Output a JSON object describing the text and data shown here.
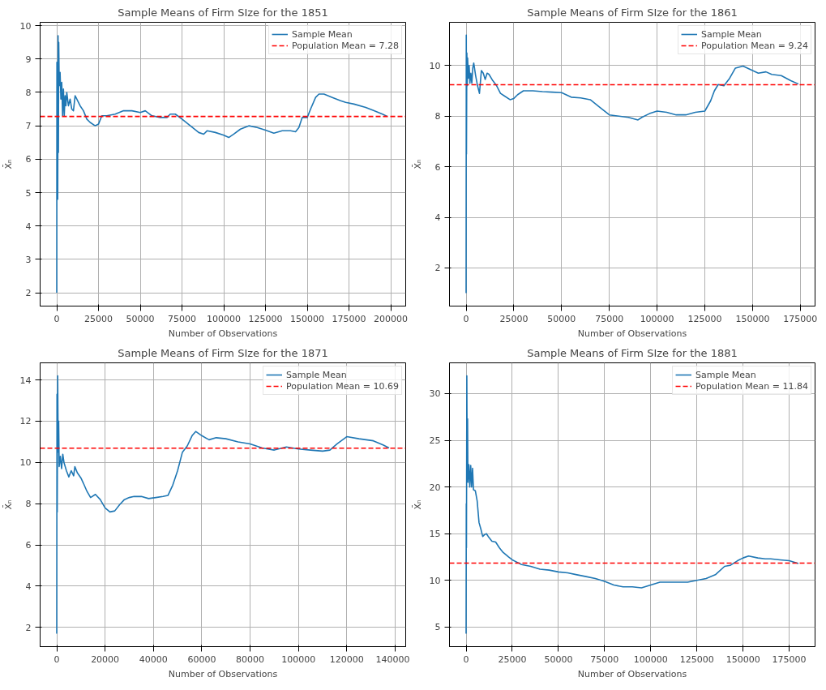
{
  "chart_data": [
    {
      "type": "line",
      "title": "Sample Means of Firm SIze for the 1851",
      "xlabel": "Number of Observations",
      "ylabel": "X̄ₙ",
      "xlim": [
        -9950,
        208950
      ],
      "ylim": [
        1.6,
        10.1
      ],
      "xticks": [
        0,
        25000,
        50000,
        75000,
        100000,
        125000,
        150000,
        175000,
        200000
      ],
      "yticks": [
        2,
        3,
        4,
        5,
        6,
        7,
        8,
        9,
        10
      ],
      "grid": true,
      "legend": "top right",
      "series": [
        {
          "name": "Sample Mean",
          "color": "#1f77b4",
          "x": [
            0,
            100,
            200,
            400,
            600,
            800,
            1000,
            1200,
            1500,
            2000,
            2500,
            3000,
            3500,
            4000,
            4500,
            5000,
            5500,
            6000,
            7000,
            8000,
            9000,
            10000,
            11000,
            12000,
            14000,
            16000,
            18000,
            20000,
            23000,
            25000,
            27000,
            30000,
            35000,
            40000,
            45000,
            50000,
            53000,
            57000,
            62000,
            66000,
            68000,
            71000,
            75000,
            80000,
            85000,
            88000,
            90000,
            95000,
            100000,
            103000,
            106000,
            110000,
            115000,
            120000,
            125000,
            130000,
            135000,
            140000,
            143000,
            145000,
            147000,
            150000,
            152000,
            155000,
            157000,
            160000,
            165000,
            170000,
            173000,
            178000,
            185000,
            190000,
            195000,
            198000
          ],
          "values": [
            2.0,
            8.9,
            5.4,
            8.8,
            4.8,
            9.7,
            6.2,
            9.5,
            8.2,
            8.6,
            7.8,
            8.3,
            7.3,
            8.1,
            7.3,
            7.9,
            7.6,
            8.0,
            7.6,
            7.8,
            7.5,
            7.45,
            7.9,
            7.8,
            7.6,
            7.45,
            7.2,
            7.1,
            7.0,
            7.05,
            7.3,
            7.3,
            7.35,
            7.45,
            7.45,
            7.4,
            7.45,
            7.3,
            7.25,
            7.25,
            7.35,
            7.35,
            7.2,
            7.0,
            6.8,
            6.75,
            6.85,
            6.8,
            6.72,
            6.65,
            6.75,
            6.9,
            7.0,
            6.95,
            6.87,
            6.78,
            6.85,
            6.85,
            6.82,
            6.95,
            7.25,
            7.25,
            7.5,
            7.85,
            7.95,
            7.95,
            7.85,
            7.75,
            7.7,
            7.65,
            7.55,
            7.45,
            7.35,
            7.28
          ]
        }
      ],
      "ref_lines": [
        {
          "axis": "y",
          "value": 7.28,
          "label": "Population Mean = 7.28",
          "color": "#ff0000",
          "line_style": "dashed"
        }
      ]
    },
    {
      "type": "line",
      "title": "Sample Means of Firm SIze for the 1861",
      "xlabel": "Number of Observations",
      "ylabel": "X̄ₙ",
      "xlim": [
        -8700,
        182700
      ],
      "ylim": [
        0.49,
        11.71
      ],
      "xticks": [
        0,
        25000,
        50000,
        75000,
        100000,
        125000,
        150000,
        175000
      ],
      "yticks": [
        2,
        4,
        6,
        8,
        10
      ],
      "grid": true,
      "legend": "top right",
      "series": [
        {
          "name": "Sample Mean",
          "color": "#1f77b4",
          "x": [
            0,
            100,
            200,
            400,
            600,
            800,
            1200,
            1600,
            2000,
            2500,
            3000,
            3500,
            4000,
            5000,
            6000,
            7000,
            8000,
            9000,
            10000,
            11000,
            12000,
            14000,
            16000,
            18000,
            20000,
            23000,
            25000,
            27000,
            30000,
            35000,
            40000,
            45000,
            50000,
            55000,
            60000,
            65000,
            70000,
            75000,
            80000,
            85000,
            90000,
            92000,
            96000,
            100000,
            105000,
            110000,
            115000,
            120000,
            125000,
            128000,
            130000,
            132000,
            135000,
            138000,
            141000,
            145000,
            150000,
            153000,
            157000,
            160000,
            165000,
            170000,
            174000
          ],
          "values": [
            1.0,
            11.2,
            6.5,
            10.5,
            9.2,
            10.3,
            9.5,
            10.0,
            9.3,
            9.7,
            9.3,
            9.9,
            10.1,
            9.6,
            9.2,
            8.9,
            9.8,
            9.7,
            9.45,
            9.7,
            9.65,
            9.4,
            9.2,
            8.9,
            8.8,
            8.65,
            8.7,
            8.85,
            9.0,
            9.0,
            8.97,
            8.95,
            8.93,
            8.75,
            8.72,
            8.65,
            8.35,
            8.05,
            8.0,
            7.95,
            7.85,
            7.95,
            8.1,
            8.2,
            8.15,
            8.05,
            8.05,
            8.15,
            8.2,
            8.6,
            9.0,
            9.25,
            9.2,
            9.5,
            9.9,
            9.98,
            9.8,
            9.7,
            9.75,
            9.65,
            9.6,
            9.4,
            9.27
          ]
        }
      ],
      "ref_lines": [
        {
          "axis": "y",
          "value": 9.24,
          "label": "Population Mean = 9.24",
          "color": "#ff0000",
          "line_style": "dashed"
        }
      ]
    },
    {
      "type": "line",
      "title": "Sample Means of Firm SIze for the 1871",
      "xlabel": "Number of Observations",
      "ylabel": "X̄ₙ",
      "xlim": [
        -6875,
        144375
      ],
      "ylim": [
        1.07,
        14.83
      ],
      "xticks": [
        0,
        20000,
        40000,
        60000,
        80000,
        100000,
        120000,
        140000
      ],
      "yticks": [
        2,
        4,
        6,
        8,
        10,
        12,
        14
      ],
      "grid": true,
      "legend": "top right",
      "series": [
        {
          "name": "Sample Mean",
          "color": "#1f77b4",
          "x": [
            0,
            100,
            200,
            400,
            600,
            800,
            1000,
            1500,
            2000,
            2500,
            3000,
            4000,
            5000,
            6000,
            7000,
            7500,
            8500,
            10000,
            11000,
            12500,
            14000,
            16000,
            18000,
            20000,
            22000,
            24000,
            26000,
            28000,
            30000,
            32000,
            35000,
            38000,
            41000,
            44000,
            46000,
            48000,
            50000,
            52000,
            54000,
            56000,
            57500,
            60000,
            63000,
            66000,
            70000,
            75000,
            80000,
            85000,
            90000,
            95000,
            100000,
            105000,
            110000,
            113000,
            116000,
            120000,
            125000,
            128000,
            131000,
            135000,
            137500
          ],
          "values": [
            1.7,
            13.3,
            7.6,
            14.2,
            10.5,
            12.0,
            9.8,
            10.3,
            9.7,
            10.4,
            10.0,
            9.6,
            9.3,
            9.6,
            9.35,
            9.8,
            9.5,
            9.25,
            9.0,
            8.6,
            8.3,
            8.45,
            8.2,
            7.8,
            7.6,
            7.65,
            7.95,
            8.2,
            8.3,
            8.35,
            8.35,
            8.25,
            8.3,
            8.35,
            8.4,
            8.9,
            9.6,
            10.5,
            10.8,
            11.3,
            11.5,
            11.3,
            11.1,
            11.2,
            11.15,
            11.0,
            10.9,
            10.7,
            10.6,
            10.75,
            10.65,
            10.6,
            10.55,
            10.6,
            10.9,
            11.25,
            11.15,
            11.1,
            11.05,
            10.85,
            10.7
          ]
        }
      ],
      "ref_lines": [
        {
          "axis": "y",
          "value": 10.69,
          "label": "Population Mean = 10.69",
          "color": "#ff0000",
          "line_style": "dashed"
        }
      ]
    },
    {
      "type": "line",
      "title": "Sample Means of Firm SIze for the 1881",
      "xlabel": "Number of Observations",
      "ylabel": "X̄ₙ",
      "xlim": [
        -9000,
        189000
      ],
      "ylim": [
        2.9,
        33.3
      ],
      "xticks": [
        0,
        25000,
        50000,
        75000,
        100000,
        125000,
        150000,
        175000
      ],
      "yticks": [
        5,
        10,
        15,
        20,
        25,
        30
      ],
      "grid": true,
      "legend": "top right",
      "series": [
        {
          "name": "Sample Mean",
          "color": "#1f77b4",
          "x": [
            0,
            100,
            200,
            400,
            600,
            800,
            1000,
            1500,
            2000,
            2500,
            3000,
            3500,
            4000,
            5000,
            6000,
            7000,
            8000,
            9000,
            10000,
            11000,
            12000,
            14000,
            16000,
            18000,
            20000,
            23000,
            25000,
            28000,
            30000,
            35000,
            40000,
            45000,
            50000,
            55000,
            60000,
            65000,
            70000,
            75000,
            80000,
            85000,
            90000,
            95000,
            100000,
            105000,
            110000,
            115000,
            120000,
            125000,
            130000,
            135000,
            140000,
            143000,
            147000,
            150000,
            153000,
            158000,
            162000,
            165000,
            170000,
            175000,
            180000
          ],
          "values": [
            4.3,
            18.2,
            13.5,
            31.9,
            22,
            27.3,
            20.5,
            22.4,
            20.0,
            22.3,
            20.0,
            22.0,
            19.7,
            19.6,
            18.5,
            16.2,
            15.5,
            14.7,
            14.9,
            15.0,
            14.7,
            14.2,
            14.1,
            13.5,
            13.0,
            12.5,
            12.2,
            11.9,
            11.7,
            11.5,
            11.2,
            11.1,
            10.9,
            10.8,
            10.6,
            10.4,
            10.2,
            9.9,
            9.5,
            9.3,
            9.3,
            9.2,
            9.5,
            9.8,
            9.8,
            9.8,
            9.8,
            10.0,
            10.2,
            10.6,
            11.5,
            11.6,
            12.1,
            12.4,
            12.6,
            12.4,
            12.3,
            12.3,
            12.2,
            12.1,
            11.8
          ]
        }
      ],
      "ref_lines": [
        {
          "axis": "y",
          "value": 11.84,
          "label": "Population Mean = 11.84",
          "color": "#ff0000",
          "line_style": "dashed"
        }
      ]
    }
  ]
}
